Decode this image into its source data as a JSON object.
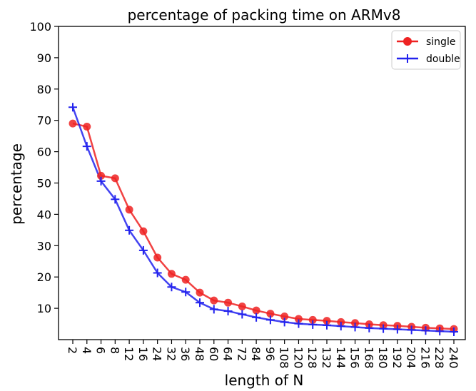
{
  "chart_data": {
    "type": "line",
    "title": "percentage of packing time on ARMv8",
    "xlabel": "length of N",
    "ylabel": "percentage",
    "ylim": [
      0,
      100
    ],
    "yticks": [
      10,
      20,
      30,
      40,
      50,
      60,
      70,
      80,
      90,
      100
    ],
    "categories": [
      "2",
      "4",
      "6",
      "8",
      "12",
      "16",
      "24",
      "32",
      "36",
      "48",
      "60",
      "64",
      "72",
      "84",
      "96",
      "108",
      "120",
      "128",
      "132",
      "144",
      "156",
      "168",
      "180",
      "192",
      "204",
      "216",
      "228",
      "240"
    ],
    "series": [
      {
        "name": "single",
        "color": "#ee2222",
        "marker": "circle",
        "values": [
          69,
          68,
          52.3,
          51.5,
          41.5,
          34.6,
          26.2,
          21.0,
          19.1,
          15.0,
          12.5,
          11.8,
          10.6,
          9.3,
          8.3,
          7.4,
          6.6,
          6.3,
          6.0,
          5.6,
          5.3,
          4.9,
          4.6,
          4.4,
          4.1,
          3.8,
          3.6,
          3.4
        ]
      },
      {
        "name": "double",
        "color": "#2222ee",
        "marker": "plus",
        "values": [
          74.2,
          61.7,
          50.6,
          44.8,
          34.9,
          28.5,
          21.3,
          16.8,
          15.2,
          11.8,
          9.7,
          9.1,
          8.1,
          7.1,
          6.3,
          5.6,
          5.1,
          4.8,
          4.6,
          4.3,
          4.0,
          3.7,
          3.5,
          3.3,
          3.1,
          2.9,
          2.7,
          2.5
        ]
      }
    ],
    "legend_position": "top-right",
    "grid": false
  }
}
